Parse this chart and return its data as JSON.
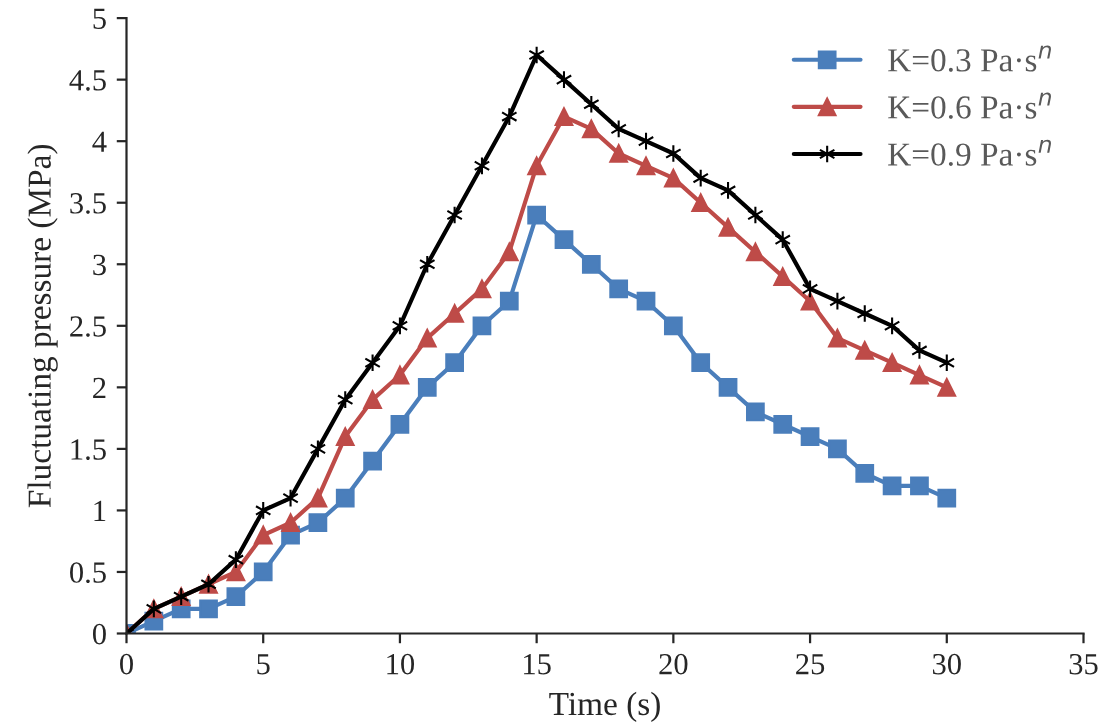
{
  "chart_data": {
    "type": "line",
    "xlabel": "Time (s)",
    "ylabel": "Fluctuating pressure (MPa)",
    "x": [
      0,
      1,
      2,
      3,
      4,
      5,
      6,
      7,
      8,
      9,
      10,
      11,
      12,
      13,
      14,
      15,
      16,
      17,
      18,
      19,
      20,
      21,
      22,
      23,
      24,
      25,
      26,
      27,
      28,
      29,
      30
    ],
    "series": [
      {
        "name": "K=0.3 Pa·s$^{n}$",
        "color": "#4a7ebb",
        "marker": "square",
        "values": [
          0,
          0.1,
          0.2,
          0.2,
          0.3,
          0.5,
          0.8,
          0.9,
          1.1,
          1.4,
          1.7,
          2.0,
          2.2,
          2.5,
          2.7,
          3.4,
          3.2,
          3.0,
          2.8,
          2.7,
          2.5,
          2.2,
          2.0,
          1.8,
          1.7,
          1.6,
          1.5,
          1.3,
          1.2,
          1.2,
          1.1
        ]
      },
      {
        "name": "K=0.6 Pa·s$^{n}$",
        "color": "#be4b48",
        "marker": "triangle",
        "values": [
          0,
          0.2,
          0.3,
          0.4,
          0.5,
          0.8,
          0.9,
          1.1,
          1.6,
          1.9,
          2.1,
          2.4,
          2.6,
          2.8,
          3.1,
          3.8,
          4.2,
          4.1,
          3.9,
          3.8,
          3.7,
          3.5,
          3.3,
          3.1,
          2.9,
          2.7,
          2.4,
          2.3,
          2.2,
          2.1,
          2.0
        ]
      },
      {
        "name": "K=0.9 Pa·s$^{n}$",
        "color": "#000000",
        "marker": "cross",
        "values": [
          0,
          0.2,
          0.3,
          0.4,
          0.6,
          1.0,
          1.1,
          1.5,
          1.9,
          2.2,
          2.5,
          3.0,
          3.4,
          3.8,
          4.2,
          4.7,
          4.5,
          4.3,
          4.1,
          4.0,
          3.9,
          3.7,
          3.6,
          3.4,
          3.2,
          2.8,
          2.7,
          2.6,
          2.5,
          2.3,
          2.2
        ]
      }
    ],
    "xlim": [
      0,
      35
    ],
    "xticks": [
      0,
      5,
      10,
      15,
      20,
      25,
      30,
      35
    ],
    "ylim": [
      0,
      5
    ],
    "yticks": [
      0,
      0.5,
      1,
      1.5,
      2,
      2.5,
      3,
      3.5,
      4,
      4.5,
      5
    ],
    "grid": false,
    "legend": "top right",
    "line_style": "solid"
  }
}
